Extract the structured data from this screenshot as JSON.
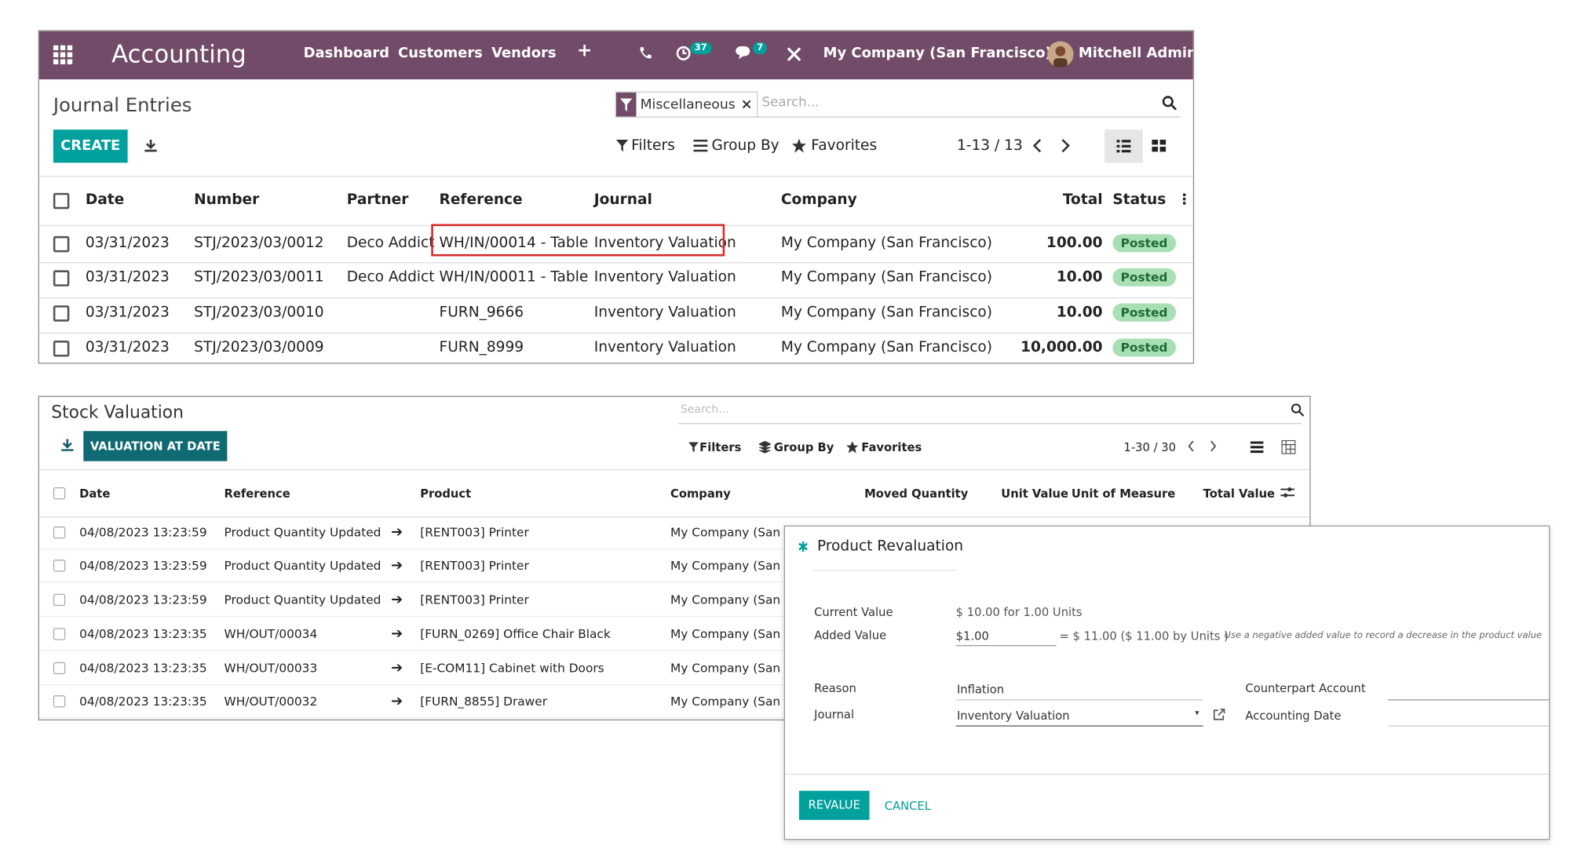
{
  "navbar": {
    "app": "Accounting",
    "menu": [
      "Dashboard",
      "Customers",
      "Vendors"
    ],
    "activity_count": "37",
    "message_count": "7",
    "company": "My Company (San Francisco)",
    "user": "Mitchell Admin"
  },
  "journal": {
    "title": "Journal Entries",
    "facet": "Miscellaneous",
    "search_placeholder": "Search...",
    "create": "CREATE",
    "filters": "Filters",
    "group_by": "Group By",
    "favorites": "Favorites",
    "pager": "1-13 / 13",
    "columns": [
      "Date",
      "Number",
      "Partner",
      "Reference",
      "Journal",
      "Company",
      "Total",
      "Status"
    ],
    "rows": [
      [
        "03/31/2023",
        "STJ/2023/03/0012",
        "Deco Addict",
        "WH/IN/00014 - Table",
        "Inventory Valuation",
        "My Company (San Francisco)",
        "100.00",
        "Posted"
      ],
      [
        "03/31/2023",
        "STJ/2023/03/0011",
        "Deco Addict",
        "WH/IN/00011 - Table",
        "Inventory Valuation",
        "My Company (San Francisco)",
        "10.00",
        "Posted"
      ],
      [
        "03/31/2023",
        "STJ/2023/03/0010",
        "",
        "FURN_9666",
        "Inventory Valuation",
        "My Company (San Francisco)",
        "10.00",
        "Posted"
      ],
      [
        "03/31/2023",
        "STJ/2023/03/0009",
        "",
        "FURN_8999",
        "Inventory Valuation",
        "My Company (San Francisco)",
        "10,000.00",
        "Posted"
      ]
    ]
  },
  "stock": {
    "title": "Stock Valuation",
    "search_placeholder": "Search...",
    "valuation_button": "VALUATION AT DATE",
    "filters": "Filters",
    "group_by": "Group By",
    "favorites": "Favorites",
    "pager": "1-30 / 30",
    "columns": [
      "Date",
      "Reference",
      "Product",
      "Company",
      "Moved Quantity",
      "Unit Value",
      "Unit of Measure",
      "Total Value"
    ],
    "rows": [
      [
        "04/08/2023 13:23:59",
        "Product Quantity Updated",
        "[RENT003] Printer",
        "My Company (San Fr"
      ],
      [
        "04/08/2023 13:23:59",
        "Product Quantity Updated",
        "[RENT003] Printer",
        "My Company (San Fr"
      ],
      [
        "04/08/2023 13:23:59",
        "Product Quantity Updated",
        "[RENT003] Printer",
        "My Company (San Fr"
      ],
      [
        "04/08/2023 13:23:35",
        "WH/OUT/00034",
        "[FURN_0269] Office Chair Black",
        "My Company (San Fr"
      ],
      [
        "04/08/2023 13:23:35",
        "WH/OUT/00033",
        "[E-COM11] Cabinet with Doors",
        "My Company (San Fr"
      ],
      [
        "04/08/2023 13:23:35",
        "WH/OUT/00032",
        "[FURN_8855] Drawer",
        "My Company (San Fr"
      ]
    ]
  },
  "dialog": {
    "title": "Product Revaluation",
    "current_value_label": "Current Value",
    "current_value": "$ 10.00 for 1.00 Units",
    "added_value_label": "Added Value",
    "added_value": "$1.00",
    "computed": "= $ 11.00 ($ 11.00 by  Units )",
    "hint": "Use a negative added value to record a decrease in the product value",
    "reason_label": "Reason",
    "reason": "Inflation",
    "journal_label": "Journal",
    "journal": "Inventory Valuation",
    "counterpart_label": "Counterpart Account",
    "accounting_date_label": "Accounting Date",
    "revalue": "REVALUE",
    "cancel": "CANCEL"
  }
}
